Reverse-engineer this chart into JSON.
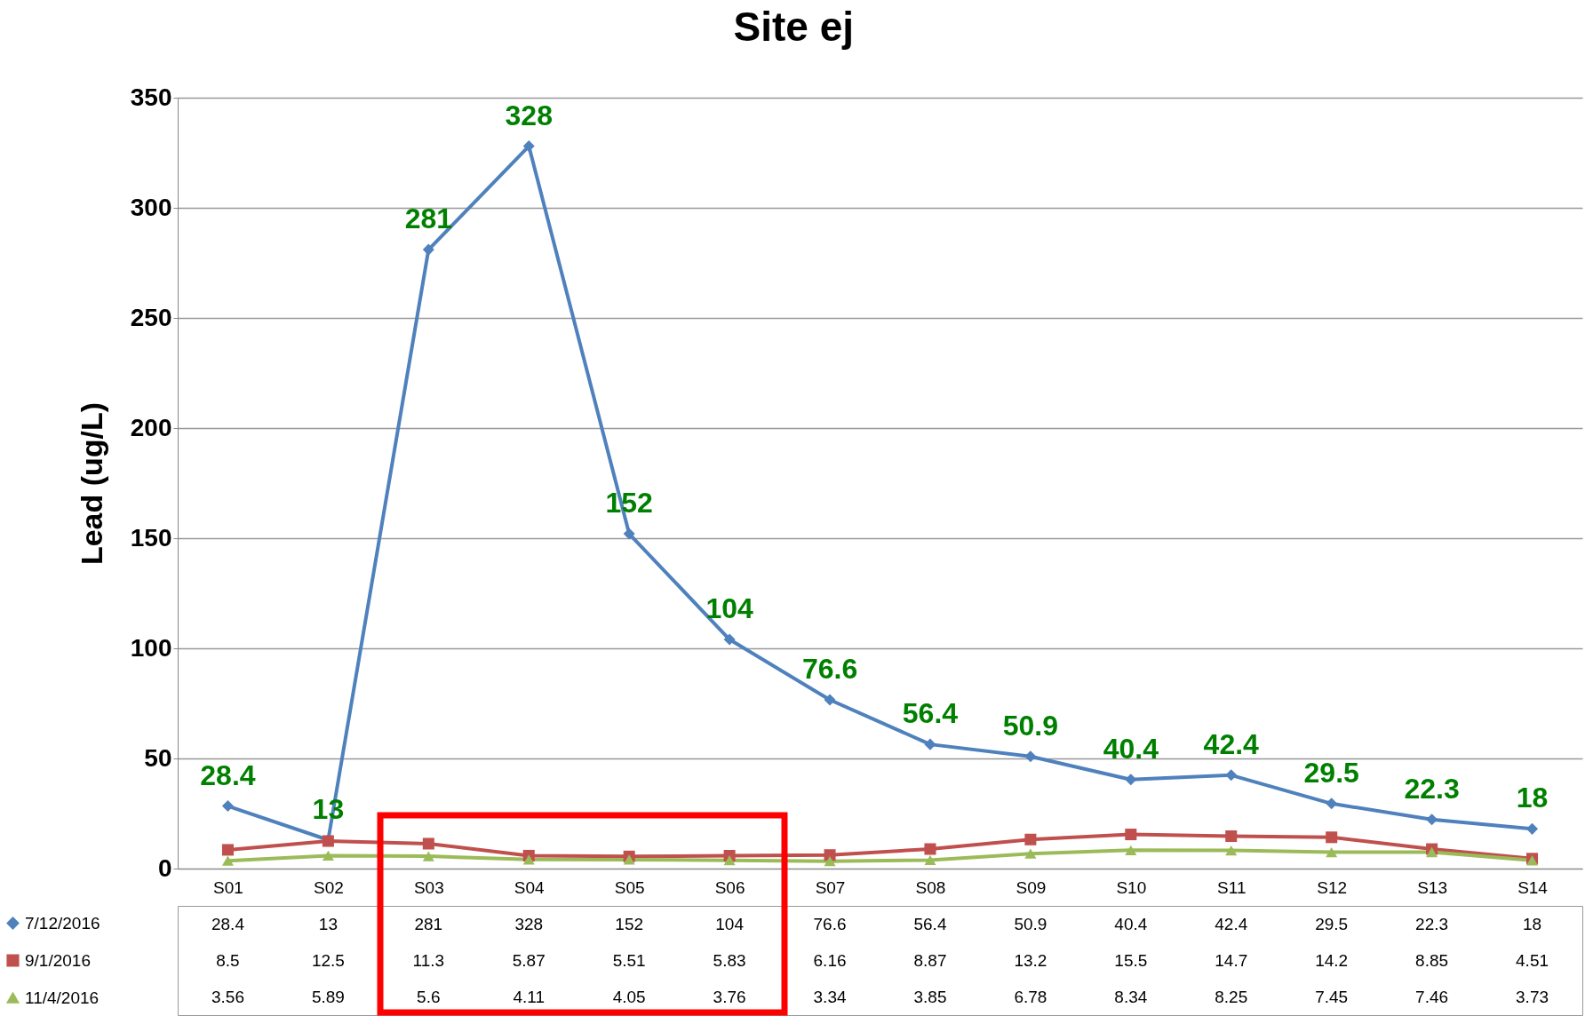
{
  "chart_data": {
    "type": "line",
    "title": "Site ej",
    "ylabel": "Lead (ug/L)",
    "categories": [
      "S01",
      "S02",
      "S03",
      "S04",
      "S05",
      "S06",
      "S07",
      "S08",
      "S09",
      "S10",
      "S11",
      "S12",
      "S13",
      "S14"
    ],
    "series": [
      {
        "name": "7/12/2016",
        "color": "#4f81bd",
        "marker": "diamond",
        "values": [
          28.4,
          13,
          281,
          328,
          152,
          104,
          76.6,
          56.4,
          50.9,
          40.4,
          42.4,
          29.5,
          22.3,
          18
        ],
        "value_labels": [
          "28.4",
          "13",
          "281",
          "328",
          "152",
          "104",
          "76.6",
          "56.4",
          "50.9",
          "40.4",
          "42.4",
          "29.5",
          "22.3",
          "18"
        ]
      },
      {
        "name": "9/1/2016",
        "color": "#c0504d",
        "marker": "square",
        "values": [
          8.5,
          12.5,
          11.3,
          5.87,
          5.51,
          5.83,
          6.16,
          8.87,
          13.2,
          15.5,
          14.7,
          14.2,
          8.85,
          4.51
        ]
      },
      {
        "name": "11/4/2016",
        "color": "#9bbb59",
        "marker": "triangle",
        "values": [
          3.56,
          5.89,
          5.6,
          4.11,
          4.05,
          3.76,
          3.34,
          3.85,
          6.78,
          8.34,
          8.25,
          7.45,
          7.46,
          3.73
        ]
      }
    ],
    "ylim": [
      0,
      350
    ],
    "yticks": [
      0,
      50,
      100,
      150,
      200,
      250,
      300,
      350
    ],
    "grid": "y",
    "legend": "bottom left",
    "data_labels": true,
    "line_style": "solid"
  }
}
